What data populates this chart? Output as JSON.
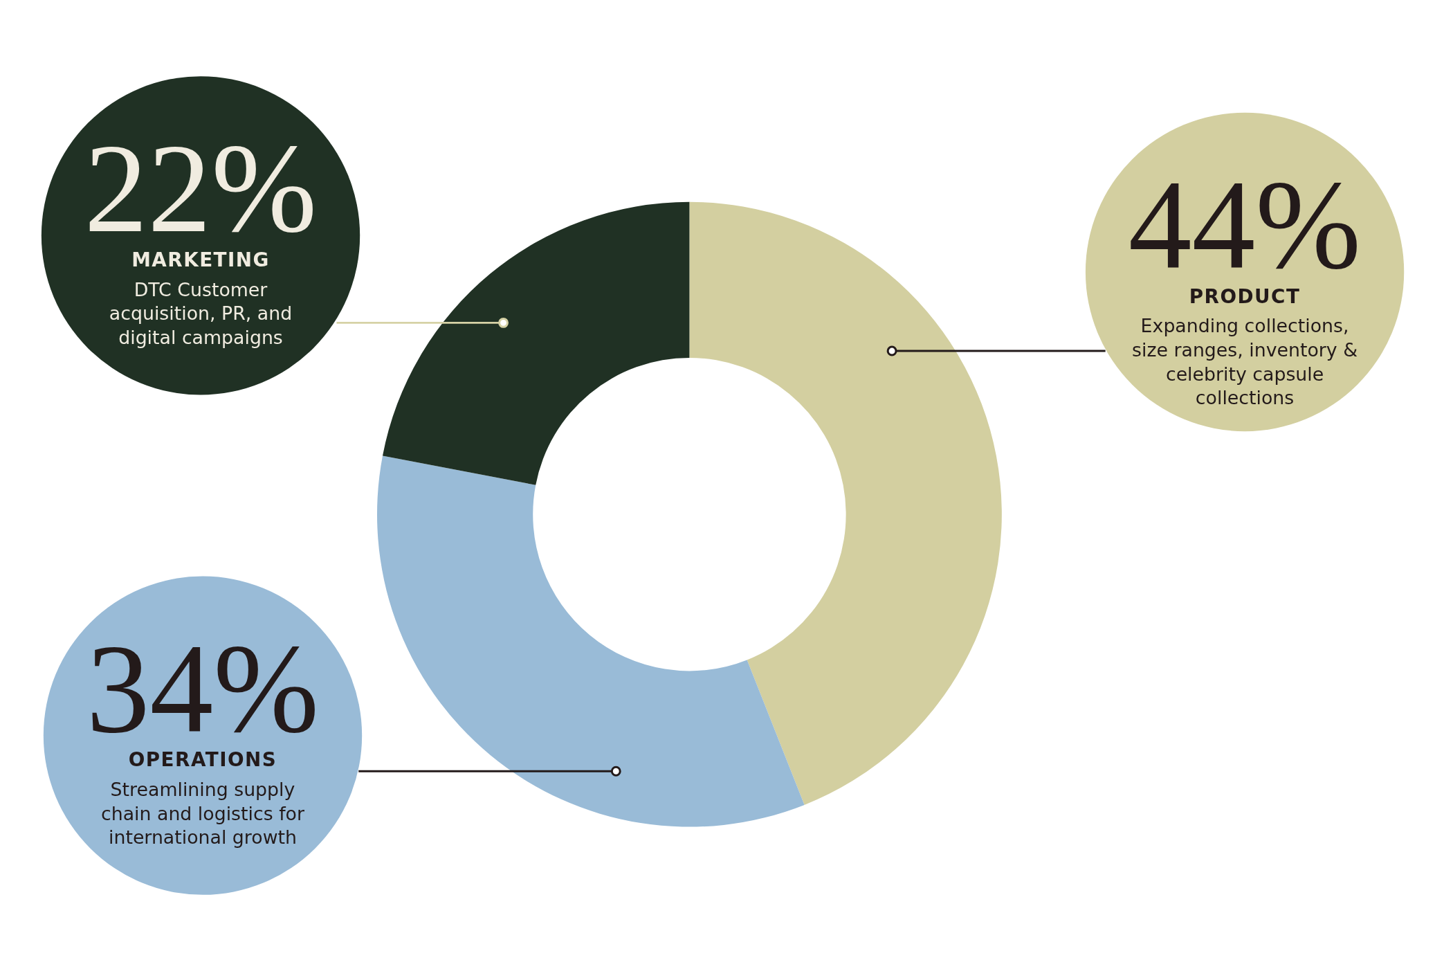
{
  "chart_data": {
    "type": "donut",
    "categories": [
      "PRODUCT",
      "OPERATIONS",
      "MARKETING"
    ],
    "values": [
      44,
      34,
      22
    ],
    "value_labels": [
      "44%",
      "34%",
      "22%"
    ],
    "colors": [
      "#d3cfa0",
      "#99bbd7",
      "#203124"
    ],
    "annotations": [
      "Expanding collections, size ranges, inventory & celebrity capsule collections",
      "Streamlining supply chain and logistics for international growth",
      "DTC Customer acquisition, PR, and digital campaigns"
    ]
  }
}
